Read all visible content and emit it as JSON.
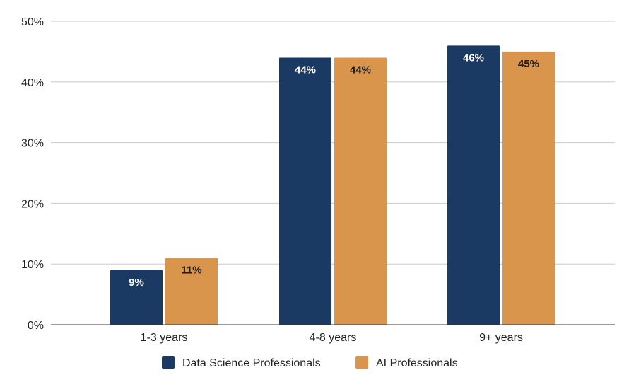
{
  "chart_data": {
    "type": "bar",
    "title": "",
    "xlabel": "",
    "ylabel": "",
    "categories": [
      "1-3 years",
      "4-8 years",
      "9+ years"
    ],
    "series": [
      {
        "name": "Data Science Professionals",
        "values": [
          9,
          44,
          46
        ],
        "color": "#1b3a63",
        "label_color": "#ffffff"
      },
      {
        "name": "AI Professionals",
        "values": [
          11,
          44,
          45
        ],
        "color": "#d9954b",
        "label_color": "#1a1a1a"
      }
    ],
    "data_labels": [
      [
        "9%",
        "44%",
        "46%"
      ],
      [
        "11%",
        "44%",
        "45%"
      ]
    ],
    "ylim": [
      0,
      50
    ],
    "yticks": [
      0,
      10,
      20,
      30,
      40,
      50
    ],
    "ytick_labels": [
      "0%",
      "10%",
      "20%",
      "30%",
      "40%",
      "50%"
    ],
    "grid": true,
    "legend_position": "bottom"
  }
}
